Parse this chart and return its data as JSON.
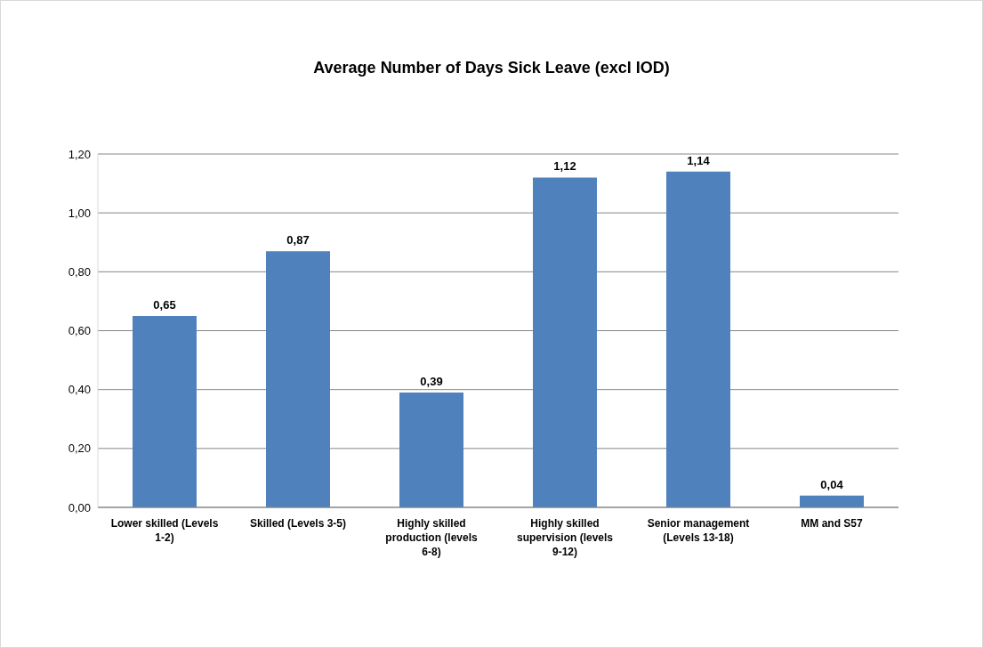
{
  "chart_data": {
    "type": "bar",
    "title": "Average Number of Days Sick Leave (excl IOD)",
    "categories": [
      "Lower skilled (Levels 1-2)",
      "Skilled (Levels 3-5)",
      "Highly skilled production (levels 6-8)",
      "Highly skilled supervision (levels 9-12)",
      "Senior management (Levels 13-18)",
      "MM and S57"
    ],
    "values": [
      0.65,
      0.87,
      0.39,
      1.12,
      1.14,
      0.04
    ],
    "value_labels": [
      "0,65",
      "0,87",
      "0,39",
      "1,12",
      "1,14",
      "0,04"
    ],
    "color": "#4f81bd",
    "ylim": [
      0,
      1.2
    ],
    "yticks": [
      {
        "value": 0,
        "label": "0,00"
      },
      {
        "value": 0.2,
        "label": "0,20"
      },
      {
        "value": 0.4,
        "label": "0,40"
      },
      {
        "value": 0.6,
        "label": "0,60"
      },
      {
        "value": 0.8,
        "label": "0,80"
      },
      {
        "value": 1.0,
        "label": "1,00"
      },
      {
        "value": 1.2,
        "label": "1,20"
      }
    ],
    "grid": "y",
    "legend": false
  }
}
